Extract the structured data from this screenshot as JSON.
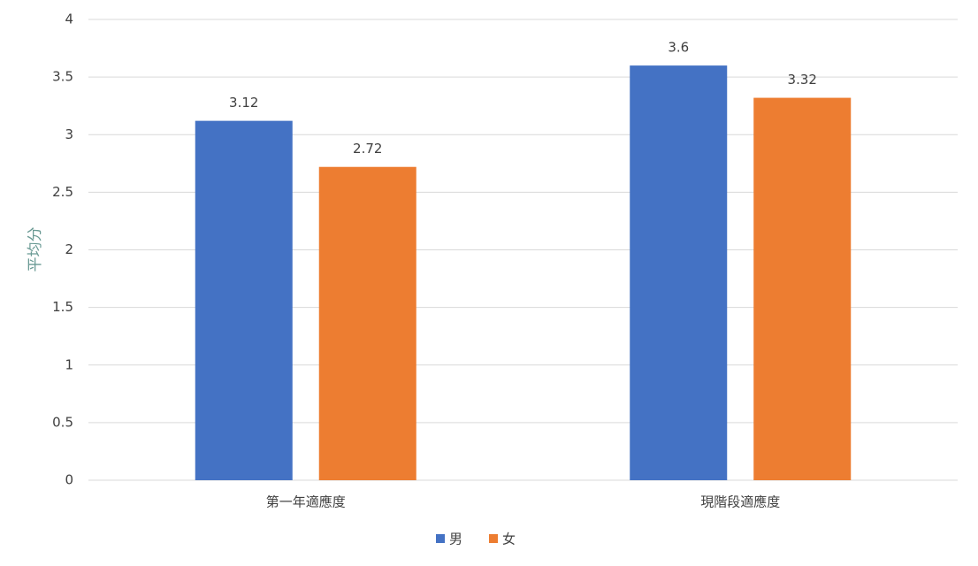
{
  "chart_data": {
    "type": "bar",
    "y_label": "平均分",
    "categories": [
      "第一年適應度",
      "現階段適應度"
    ],
    "series": [
      {
        "name": "男",
        "color": "#4472c4",
        "values": [
          3.12,
          3.6
        ]
      },
      {
        "name": "女",
        "color": "#ed7d31",
        "values": [
          2.72,
          3.32
        ]
      }
    ],
    "ylim": [
      0,
      4
    ],
    "yticks": [
      0,
      0.5,
      1,
      1.5,
      2,
      2.5,
      3,
      3.5,
      4
    ],
    "grid": true,
    "legend": "bottom"
  }
}
